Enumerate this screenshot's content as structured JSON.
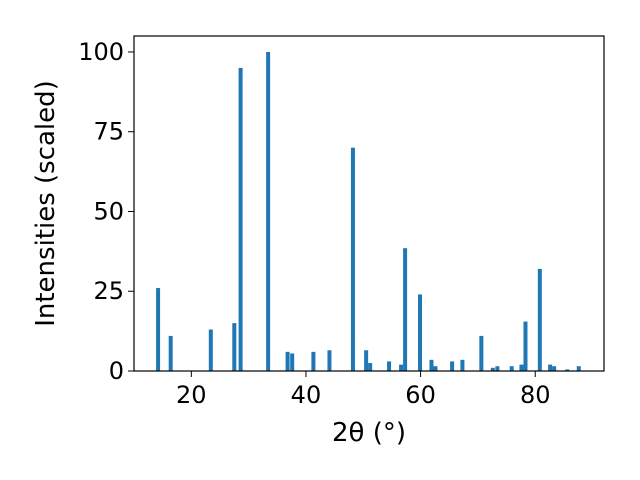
{
  "chart_data": {
    "type": "bar",
    "title": "",
    "xlabel": "2θ (°)",
    "ylabel": "Intensities (scaled)",
    "xlim": [
      10,
      92
    ],
    "ylim": [
      0,
      105
    ],
    "xticks": [
      20,
      40,
      60,
      80
    ],
    "yticks": [
      0,
      25,
      50,
      75,
      100
    ],
    "grid": false,
    "bar_width_deg": 0.7,
    "bar_color": "#1f77b4",
    "series": [
      {
        "x": [
          14.2,
          16.4,
          23.4,
          27.5,
          28.6,
          33.4,
          36.8,
          37.6,
          41.3,
          44.1,
          48.2,
          50.5,
          51.2,
          54.5,
          56.6,
          57.3,
          59.9,
          61.9,
          62.6,
          65.5,
          67.3,
          70.6,
          72.6,
          73.4,
          75.9,
          77.6,
          78.3,
          80.8,
          82.6,
          83.3,
          85.6,
          87.6
        ],
        "y": [
          26,
          11,
          13,
          15,
          95,
          100,
          6,
          5.5,
          6,
          6.5,
          70,
          6.5,
          2.5,
          3,
          2,
          38.5,
          24,
          3.5,
          1.5,
          3,
          3.5,
          11,
          1,
          1.5,
          1.5,
          2,
          15.5,
          32,
          2,
          1.5,
          0.5,
          1.5
        ]
      }
    ]
  }
}
